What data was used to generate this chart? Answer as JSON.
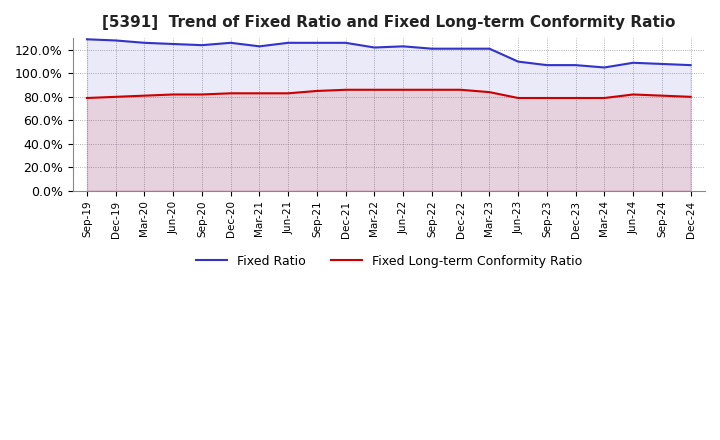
{
  "title": "[5391]  Trend of Fixed Ratio and Fixed Long-term Conformity Ratio",
  "x_labels": [
    "Sep-19",
    "Dec-19",
    "Mar-20",
    "Jun-20",
    "Sep-20",
    "Dec-20",
    "Mar-21",
    "Jun-21",
    "Sep-21",
    "Dec-21",
    "Mar-22",
    "Jun-22",
    "Sep-22",
    "Dec-22",
    "Mar-23",
    "Jun-23",
    "Sep-23",
    "Dec-23",
    "Mar-24",
    "Jun-24",
    "Sep-24",
    "Dec-24"
  ],
  "fixed_ratio": [
    129,
    128,
    126,
    125,
    124,
    126,
    123,
    126,
    126,
    126,
    122,
    123,
    121,
    121,
    121,
    110,
    107,
    107,
    105,
    109,
    108,
    107
  ],
  "fixed_lt_ratio": [
    79,
    80,
    81,
    82,
    82,
    83,
    83,
    83,
    85,
    86,
    86,
    86,
    86,
    86,
    84,
    79,
    79,
    79,
    79,
    82,
    81,
    80
  ],
  "ylim": [
    0,
    130
  ],
  "yticks": [
    0,
    20,
    40,
    60,
    80,
    100,
    120
  ],
  "ytick_labels": [
    "0.0%",
    "20.0%",
    "40.0%",
    "60.0%",
    "80.0%",
    "100.0%",
    "120.0%"
  ],
  "blue_color": "#3333cc",
  "red_color": "#cc0000",
  "background_color": "#ffffff",
  "grid_color": "#999999",
  "legend_fixed_ratio": "Fixed Ratio",
  "legend_fixed_lt_ratio": "Fixed Long-term Conformity Ratio",
  "fill_blue_alpha": 0.1,
  "fill_red_alpha": 0.1,
  "linewidth": 1.5
}
